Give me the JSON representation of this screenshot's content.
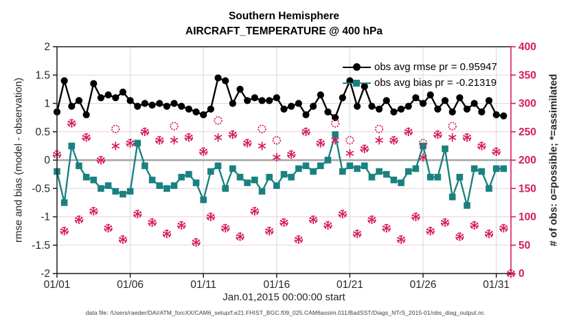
{
  "title": {
    "line1": "Southern Hemisphere",
    "line2": "AIRCRAFT_TEMPERATURE @ 400 hPa"
  },
  "legend": [
    {
      "series": "rmse",
      "label": "obs avg rmse pr = 0.95947"
    },
    {
      "series": "bias",
      "label": "obs avg bias pr = -0.21319"
    }
  ],
  "axes": {
    "left": {
      "label": "rmse and bias (model - observation)",
      "range": [
        -2,
        2
      ],
      "tick_labels": [
        "2",
        "1.5",
        "1",
        "0.5",
        "0",
        "-0.5",
        "-1",
        "-1.5",
        "-2"
      ],
      "tick_values": [
        2,
        1.5,
        1,
        0.5,
        0,
        -0.5,
        -1,
        -1.5,
        -2
      ]
    },
    "right": {
      "label": "# of obs: o=possible; *=assimilated",
      "range": [
        0,
        400
      ],
      "tick_labels": [
        "400",
        "350",
        "300",
        "250",
        "200",
        "150",
        "100",
        "50",
        "0"
      ],
      "tick_values": [
        400,
        350,
        300,
        250,
        200,
        150,
        100,
        50,
        0
      ]
    },
    "x": {
      "label": "Jan.01,2015 00:00:00 start",
      "range_days": [
        0,
        31
      ],
      "tick_labels": [
        "01/01",
        "01/06",
        "01/11",
        "01/16",
        "01/21",
        "01/26",
        "01/31"
      ],
      "tick_days": [
        0,
        5,
        10,
        15,
        20,
        25,
        30
      ]
    }
  },
  "footer": "data file: /Users/raeder/DAI/ATM_forcXX/CAM6_setup/f.e21.FHIST_BGC.f09_025.CAM6assim.011/BadSST/Diags_NTrS_2015-01/obs_diag_output.nc",
  "colors": {
    "rmse": "#000000",
    "bias": "#1a8180",
    "obs": "#d61a5f",
    "grid_h": "#f2ccd7",
    "grid_v": "#d9d9d9",
    "zero_line": "#a8a8a8",
    "axis": "#1a1a1a",
    "tick_text": "#262626"
  },
  "chart_data": {
    "type": "line",
    "title": "Southern Hemisphere AIRCRAFT_TEMPERATURE @ 400 hPa",
    "xlabel": "Jan.01,2015 00:00:00 start",
    "ylabel_left": "rmse and bias (model - observation)",
    "ylabel_right": "# of obs: o=possible; *=assimilated",
    "ylim_left": [
      -2,
      2
    ],
    "ylim_right": [
      0,
      400
    ],
    "x_step_days": 0.5,
    "x_start": "01/01",
    "grid": true,
    "legend_position": "top-right-inside",
    "series": [
      {
        "name": "obs avg rmse pr",
        "mean": 0.95947,
        "marker": "filled-circle",
        "axis": "left",
        "values": [
          0.85,
          1.4,
          0.95,
          1.05,
          0.8,
          1.35,
          1.1,
          1.15,
          1.1,
          1.2,
          1.05,
          0.95,
          1.0,
          0.97,
          1.0,
          0.95,
          1.0,
          0.95,
          0.9,
          0.85,
          0.8,
          0.9,
          1.45,
          1.4,
          1.0,
          1.25,
          1.05,
          1.1,
          1.05,
          1.05,
          1.1,
          0.9,
          0.95,
          1.0,
          0.8,
          0.95,
          1.15,
          0.85,
          0.75,
          1.1,
          1.4,
          0.95,
          1.3,
          0.95,
          0.9,
          1.05,
          0.85,
          0.9,
          0.95,
          1.1,
          1.0,
          1.15,
          0.9,
          1.05,
          0.85,
          1.1,
          0.9,
          1.0,
          0.85,
          1.05,
          0.8,
          0.78
        ]
      },
      {
        "name": "obs avg bias pr",
        "mean": -0.21319,
        "marker": "filled-square",
        "axis": "left",
        "values": [
          -0.2,
          -0.75,
          0.25,
          -0.1,
          -0.3,
          -0.35,
          -0.5,
          -0.45,
          -0.55,
          -0.6,
          -0.55,
          0.3,
          -0.1,
          -0.35,
          -0.45,
          -0.5,
          -0.45,
          -0.3,
          -0.25,
          -0.4,
          -0.7,
          -0.2,
          -0.1,
          -0.5,
          -0.15,
          -0.3,
          -0.4,
          -0.35,
          -0.55,
          -0.3,
          -0.45,
          -0.25,
          -0.3,
          -0.15,
          -0.1,
          -0.2,
          -0.1,
          0.0,
          0.45,
          -0.2,
          -0.1,
          -0.15,
          -0.1,
          -0.3,
          -0.2,
          -0.25,
          -0.35,
          -0.4,
          -0.2,
          -0.15,
          0.25,
          -0.3,
          -0.3,
          0.2,
          -0.65,
          -0.3,
          -0.8,
          -0.15,
          -0.2,
          -0.5,
          -0.15,
          -0.15
        ]
      },
      {
        "name": "n_possible",
        "marker": "open-circle",
        "axis": "right",
        "values": [
          210,
          75,
          265,
          95,
          240,
          110,
          200,
          80,
          255,
          60,
          230,
          105,
          250,
          90,
          235,
          70,
          260,
          85,
          240,
          55,
          215,
          100,
          270,
          80,
          245,
          65,
          230,
          110,
          255,
          75,
          235,
          90,
          210,
          60,
          250,
          95,
          230,
          85,
          265,
          105,
          235,
          70,
          220,
          95,
          255,
          80,
          235,
          60,
          250,
          100,
          230,
          75,
          245,
          90,
          260,
          65,
          240,
          85,
          225,
          70,
          215,
          80,
          0
        ]
      },
      {
        "name": "n_assimilated",
        "marker": "asterisk",
        "axis": "right",
        "values": [
          210,
          75,
          265,
          95,
          240,
          110,
          200,
          80,
          225,
          60,
          230,
          105,
          250,
          90,
          235,
          70,
          235,
          85,
          240,
          55,
          215,
          100,
          240,
          80,
          245,
          65,
          230,
          110,
          225,
          75,
          205,
          90,
          210,
          60,
          250,
          95,
          230,
          85,
          235,
          105,
          212,
          70,
          220,
          95,
          235,
          80,
          235,
          60,
          250,
          100,
          205,
          75,
          245,
          90,
          240,
          65,
          240,
          85,
          225,
          70,
          215,
          80,
          0
        ]
      }
    ]
  }
}
